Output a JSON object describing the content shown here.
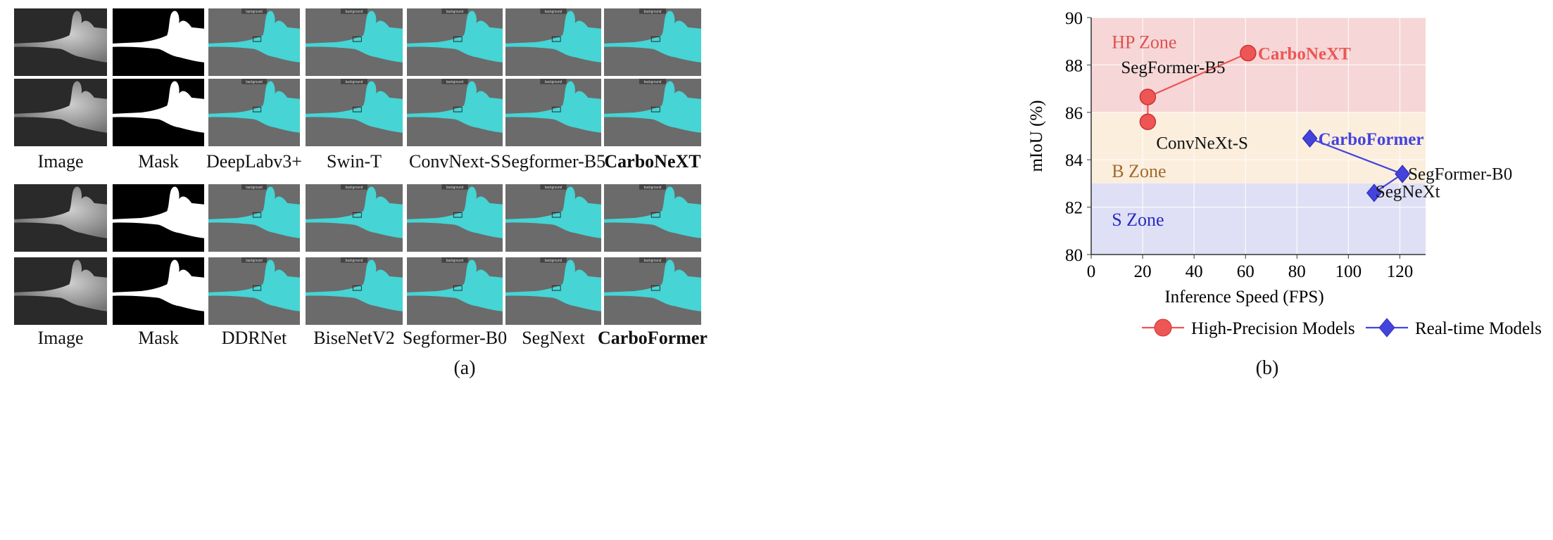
{
  "panel_a": {
    "top_labels": [
      "Image",
      "Mask",
      "DeepLabv3+",
      "Swin-T",
      "ConvNext-S",
      "Segformer-B5",
      "CarboNeXT"
    ],
    "bottom_labels": [
      "Image",
      "Mask",
      "DDRNet",
      "BiseNetV2",
      "Segformer-B0",
      "SegNext",
      "CarboFormer"
    ],
    "overlay_tag": "background",
    "caption": "(a)"
  },
  "panel_b": {
    "caption": "(b)"
  },
  "chart_data": {
    "type": "scatter",
    "xlabel": "Inference Speed (FPS)",
    "ylabel": "mIoU (%)",
    "xlim": [
      0,
      130
    ],
    "ylim": [
      80,
      90
    ],
    "xticks": [
      0,
      20,
      40,
      60,
      80,
      100,
      120
    ],
    "yticks": [
      80,
      82,
      84,
      86,
      88,
      90
    ],
    "grid": true,
    "zones": [
      {
        "label": "HP Zone",
        "y0": 86,
        "y1": 90,
        "color": "#f6d6d6",
        "text_color": "#e05050"
      },
      {
        "label": "B Zone",
        "y0": 83,
        "y1": 86,
        "color": "#fbeedd",
        "text_color": "#a06a2a"
      },
      {
        "label": "S Zone",
        "y0": 80,
        "y1": 83,
        "color": "#dfe0f6",
        "text_color": "#2a2ac0"
      }
    ],
    "series": [
      {
        "name": "High-Precision Models",
        "marker": "circle",
        "color": "#ee5555",
        "points": [
          {
            "label": "ConvNeXt-S",
            "x": 22,
            "y": 85.6
          },
          {
            "label": "SegFormer-B5",
            "x": 22,
            "y": 86.65
          },
          {
            "label": "CarboNeXT",
            "x": 61,
            "y": 88.5
          }
        ]
      },
      {
        "name": "Real-time Models",
        "marker": "diamond",
        "color": "#4444dd",
        "points": [
          {
            "label": "SegNeXt",
            "x": 110,
            "y": 82.6
          },
          {
            "label": "SegFormer-B0",
            "x": 121,
            "y": 83.4
          },
          {
            "label": "CarboFormer",
            "x": 85,
            "y": 84.9
          }
        ]
      }
    ]
  }
}
